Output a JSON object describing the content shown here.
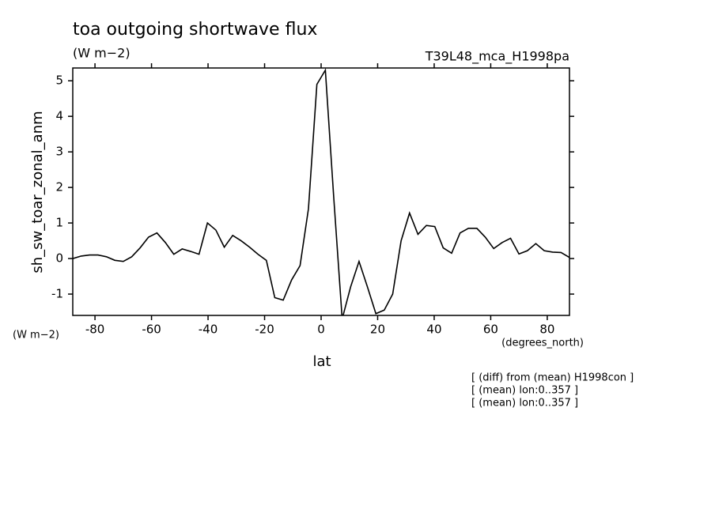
{
  "chart_data": {
    "type": "line",
    "title": "toa outgoing shortwave flux",
    "units": "(W m−2)",
    "run_label": "T39L48_mca_H1998pa",
    "y_label": "sh_sw_toar_zonal_anm",
    "y_units": "(W m−2)",
    "x_label": "lat",
    "x_units": "(degrees_north)",
    "notes": [
      "[ (diff) from (mean) H1998con ]",
      "[ (mean) lon:0..357 ]",
      "[ (mean) lon:0..357 ]"
    ],
    "x": [
      -87.86,
      -84.88,
      -81.9,
      -78.93,
      -75.95,
      -72.97,
      -69.99,
      -67.01,
      -64.04,
      -61.06,
      -58.08,
      -55.1,
      -52.12,
      -49.15,
      -46.17,
      -43.19,
      -40.21,
      -37.23,
      -34.26,
      -31.28,
      -28.3,
      -25.32,
      -22.34,
      -19.37,
      -16.39,
      -13.41,
      -10.43,
      -7.45,
      -4.48,
      -1.5,
      1.5,
      4.48,
      7.45,
      10.43,
      13.41,
      16.39,
      19.37,
      22.34,
      25.32,
      28.3,
      31.28,
      34.26,
      37.23,
      40.21,
      43.19,
      46.17,
      49.15,
      52.12,
      55.1,
      58.08,
      61.06,
      64.04,
      67.01,
      69.99,
      72.97,
      75.95,
      78.93,
      81.9,
      84.88,
      87.86
    ],
    "series": [
      {
        "color": "#000000",
        "values": [
          0.0,
          0.07,
          0.1,
          0.1,
          0.05,
          -0.05,
          -0.08,
          0.05,
          0.3,
          0.6,
          0.72,
          0.45,
          0.12,
          0.27,
          0.2,
          0.12,
          1.0,
          0.8,
          0.32,
          0.65,
          0.5,
          0.32,
          0.12,
          -0.05,
          -1.1,
          -1.17,
          -0.6,
          -0.2,
          1.4,
          4.9,
          5.3,
          1.7,
          -1.7,
          -0.8,
          -0.08,
          -0.8,
          -1.55,
          -1.45,
          -1.0,
          0.5,
          1.28,
          0.68,
          0.93,
          0.9,
          0.3,
          0.15,
          0.72,
          0.85,
          0.85,
          0.6,
          0.28,
          0.45,
          0.57,
          0.13,
          0.22,
          0.42,
          0.22,
          0.18,
          0.17,
          0.03
        ]
      }
    ],
    "xlim": [
      -87.86,
      87.86
    ],
    "ylim": [
      -1.6,
      5.36
    ],
    "xticks": [
      -80,
      -60,
      -40,
      -20,
      0,
      20,
      40,
      60,
      80
    ],
    "yticks": [
      -1,
      0,
      1,
      2,
      3,
      4,
      5
    ]
  }
}
